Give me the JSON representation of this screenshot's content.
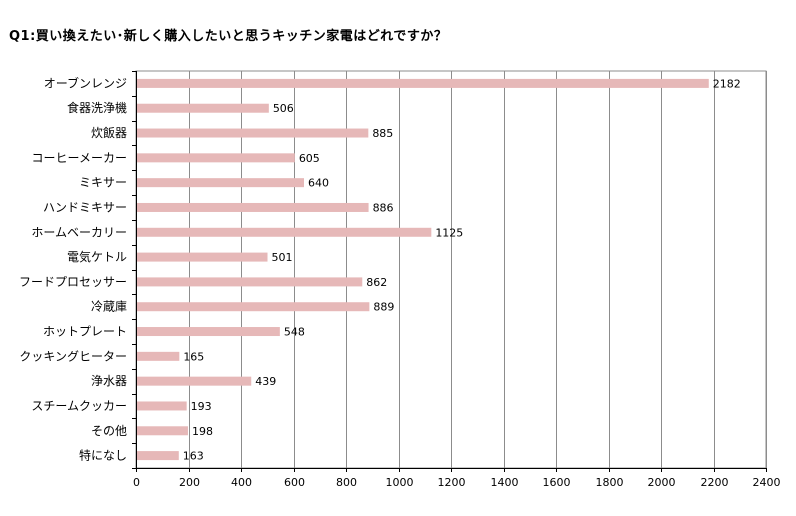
{
  "title": "Q1:買い換えたい･新しく購入したいと思うキッチン家電はどれですか？",
  "colors": {
    "bar": "#e6b8b8",
    "grid": "#8c8c8c",
    "axis": "#000000"
  },
  "chart_data": {
    "type": "bar",
    "orientation": "horizontal",
    "title": "Q1:買い換えたい･新しく購入したいと思うキッチン家電はどれですか？",
    "xlabel": "",
    "ylabel": "",
    "categories": [
      "オーブンレンジ",
      "食器洗浄機",
      "炊飯器",
      "コーヒーメーカー",
      "ミキサー",
      "ハンドミキサー",
      "ホームベーカリー",
      "電気ケトル",
      "フードプロセッサー",
      "冷蔵庫",
      "ホットプレート",
      "クッキングヒーター",
      "浄水器",
      "スチームクッカー",
      "その他",
      "特になし"
    ],
    "values": [
      2182,
      506,
      885,
      605,
      640,
      886,
      1125,
      501,
      862,
      889,
      548,
      165,
      439,
      193,
      198,
      163
    ],
    "xlim": [
      0,
      2400
    ],
    "xticks": [
      0,
      200,
      400,
      600,
      800,
      1000,
      1200,
      1400,
      1600,
      1800,
      2000,
      2200,
      2400
    ],
    "grid": true,
    "legend": "none"
  }
}
